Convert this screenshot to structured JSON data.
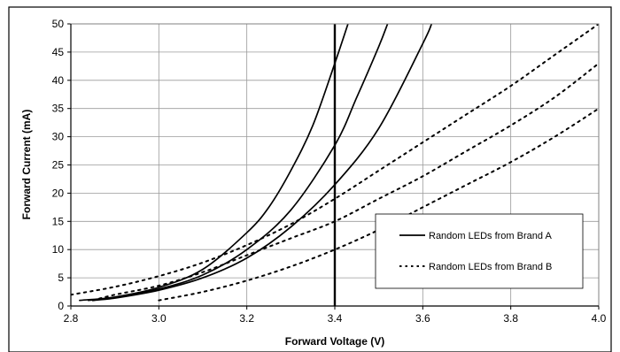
{
  "chart_data": {
    "type": "line",
    "xlabel": "Forward Voltage (V)",
    "ylabel": "Forward Current (mA)",
    "xlim": [
      2.8,
      4.0
    ],
    "ylim": [
      0,
      50
    ],
    "x_ticks": [
      "2.8",
      "3.0",
      "3.2",
      "3.4",
      "3.6",
      "3.8",
      "4.0"
    ],
    "y_ticks": [
      "0",
      "5",
      "10",
      "15",
      "20",
      "25",
      "30",
      "35",
      "40",
      "45",
      "50"
    ],
    "grid": true,
    "legend_position": "right",
    "legend": [
      {
        "label": "Random LEDs from Brand A",
        "style": "solid"
      },
      {
        "label": "Random LEDs from Brand B",
        "style": "dotted"
      }
    ],
    "reference_line": {
      "x": 3.4
    },
    "series": [
      {
        "group": "A",
        "style": "solid",
        "points": [
          [
            2.82,
            1.0
          ],
          [
            2.9,
            1.6
          ],
          [
            3.0,
            3.3
          ],
          [
            3.1,
            6.5
          ],
          [
            3.2,
            13.0
          ],
          [
            3.25,
            17.5
          ],
          [
            3.3,
            24.0
          ],
          [
            3.35,
            32.0
          ],
          [
            3.4,
            43.0
          ],
          [
            3.43,
            50.0
          ]
        ]
      },
      {
        "group": "A",
        "style": "solid",
        "points": [
          [
            2.84,
            1.0
          ],
          [
            2.9,
            1.5
          ],
          [
            3.0,
            3.0
          ],
          [
            3.1,
            5.5
          ],
          [
            3.2,
            10.0
          ],
          [
            3.3,
            17.0
          ],
          [
            3.4,
            28.5
          ],
          [
            3.45,
            37.0
          ],
          [
            3.5,
            46.0
          ],
          [
            3.52,
            50.0
          ]
        ]
      },
      {
        "group": "A",
        "style": "solid",
        "points": [
          [
            2.85,
            1.0
          ],
          [
            2.9,
            1.4
          ],
          [
            3.0,
            2.8
          ],
          [
            3.1,
            5.0
          ],
          [
            3.2,
            8.5
          ],
          [
            3.3,
            14.0
          ],
          [
            3.4,
            21.5
          ],
          [
            3.5,
            31.5
          ],
          [
            3.6,
            46.5
          ],
          [
            3.62,
            50.0
          ]
        ]
      },
      {
        "group": "B",
        "style": "dotted",
        "points": [
          [
            2.8,
            2.0
          ],
          [
            2.9,
            3.4
          ],
          [
            3.0,
            5.3
          ],
          [
            3.1,
            7.7
          ],
          [
            3.2,
            10.8
          ],
          [
            3.3,
            14.5
          ],
          [
            3.4,
            19.0
          ],
          [
            3.5,
            24.0
          ],
          [
            3.6,
            29.0
          ],
          [
            3.7,
            34.0
          ],
          [
            3.8,
            39.0
          ],
          [
            3.9,
            44.5
          ],
          [
            4.0,
            50.0
          ]
        ]
      },
      {
        "group": "B",
        "style": "dotted",
        "points": [
          [
            2.85,
            1.0
          ],
          [
            2.9,
            2.0
          ],
          [
            3.0,
            3.6
          ],
          [
            3.1,
            6.0
          ],
          [
            3.2,
            9.0
          ],
          [
            3.3,
            12.0
          ],
          [
            3.4,
            15.0
          ],
          [
            3.5,
            19.0
          ],
          [
            3.6,
            23.0
          ],
          [
            3.7,
            27.5
          ],
          [
            3.8,
            32.0
          ],
          [
            3.9,
            37.0
          ],
          [
            4.0,
            43.0
          ]
        ]
      },
      {
        "group": "B",
        "style": "dotted",
        "points": [
          [
            3.0,
            1.0
          ],
          [
            3.1,
            2.5
          ],
          [
            3.2,
            4.5
          ],
          [
            3.3,
            7.0
          ],
          [
            3.4,
            10.0
          ],
          [
            3.5,
            13.5
          ],
          [
            3.6,
            17.5
          ],
          [
            3.7,
            21.5
          ],
          [
            3.8,
            25.5
          ],
          [
            3.9,
            30.0
          ],
          [
            4.0,
            35.0
          ]
        ]
      }
    ]
  }
}
